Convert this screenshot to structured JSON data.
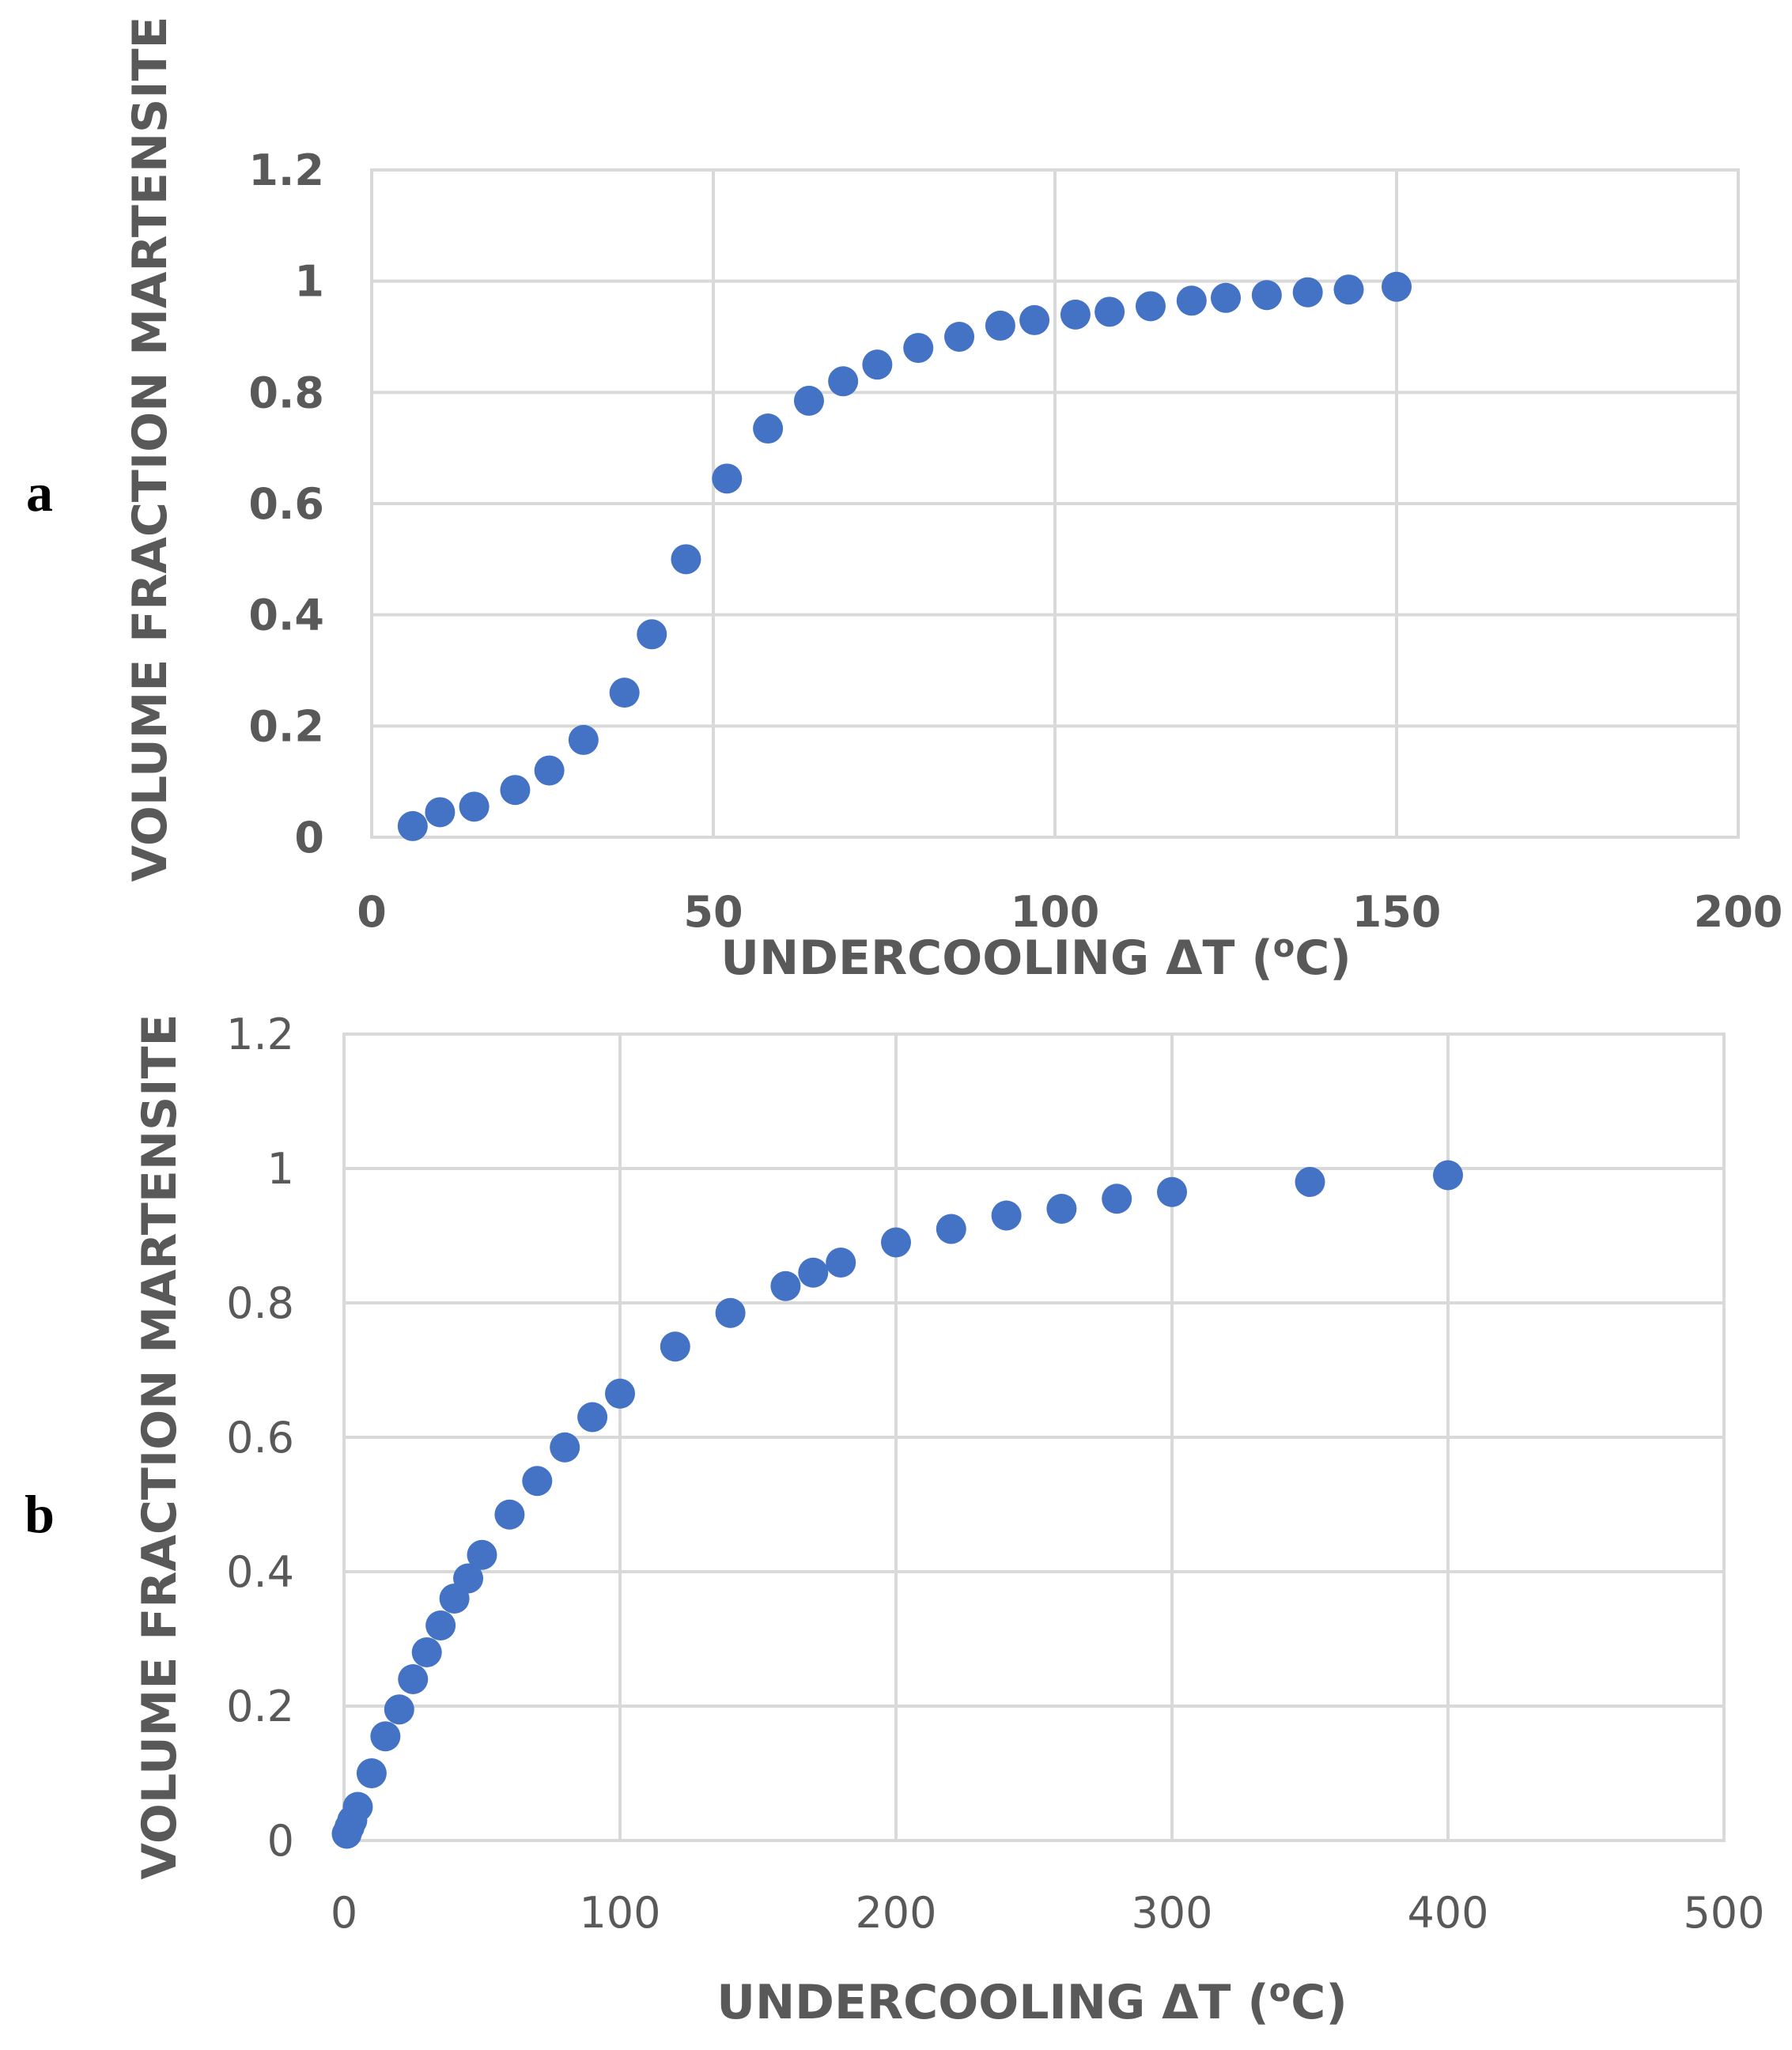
{
  "chart_data": [
    {
      "type": "scatter",
      "panel_label": "a",
      "title": "",
      "xlabel": "UNDERCOOLING ΔT (",
      "xlabel_sup": "o",
      "xlabel_tail": "C)",
      "ylabel": "VOLUME FRACTION MARTENSITE",
      "xlim": [
        0,
        200
      ],
      "ylim": [
        0,
        1.2
      ],
      "x_ticks": [
        0,
        50,
        100,
        150,
        200
      ],
      "y_ticks": [
        0,
        0.2,
        0.4,
        0.6,
        0.8,
        1,
        1.2
      ],
      "x_tick_labels": [
        "0",
        "50",
        "100",
        "150",
        "200"
      ],
      "y_tick_labels": [
        "0",
        "0.2",
        "0.4",
        "0.6",
        "0.8",
        "1",
        "1.2"
      ],
      "grid": true,
      "marker_color": "#4472c4",
      "series": [
        {
          "name": "",
          "x": [
            6,
            10,
            15,
            21,
            26,
            31,
            37,
            41,
            46,
            52,
            58,
            64,
            69,
            74,
            80,
            86,
            92,
            97,
            103,
            108,
            114,
            120,
            125,
            131,
            137,
            143,
            150
          ],
          "y": [
            0.02,
            0.045,
            0.055,
            0.085,
            0.12,
            0.175,
            0.26,
            0.365,
            0.5,
            0.645,
            0.735,
            0.785,
            0.82,
            0.85,
            0.88,
            0.9,
            0.92,
            0.93,
            0.94,
            0.945,
            0.955,
            0.965,
            0.97,
            0.975,
            0.98,
            0.985,
            0.99
          ]
        }
      ]
    },
    {
      "type": "scatter",
      "panel_label": "b",
      "title": "",
      "xlabel": "UNDERCOOLING ΔT (",
      "xlabel_sup": "o",
      "xlabel_tail": "C)",
      "ylabel": "VOLUME FRACTION MARTENSITE",
      "xlim": [
        0,
        500
      ],
      "ylim": [
        0,
        1.2
      ],
      "x_ticks": [
        0,
        100,
        200,
        300,
        400,
        500
      ],
      "y_ticks": [
        0,
        0.2,
        0.4,
        0.6,
        0.8,
        1,
        1.2
      ],
      "x_tick_labels": [
        "0",
        "100",
        "200",
        "300",
        "400",
        "500"
      ],
      "y_tick_labels": [
        "0",
        "0.2",
        "0.4",
        "0.6",
        "0.8",
        "1",
        "1.2"
      ],
      "grid": true,
      "marker_color": "#4472c4",
      "series": [
        {
          "name": "",
          "x": [
            1,
            2,
            3,
            5,
            10,
            15,
            20,
            25,
            30,
            35,
            40,
            45,
            50,
            60,
            70,
            80,
            90,
            100,
            120,
            140,
            160,
            170,
            180,
            200,
            220,
            240,
            260,
            280,
            300,
            350,
            400
          ],
          "y": [
            0.01,
            0.02,
            0.03,
            0.05,
            0.1,
            0.155,
            0.195,
            0.24,
            0.28,
            0.32,
            0.36,
            0.39,
            0.425,
            0.485,
            0.535,
            0.585,
            0.63,
            0.665,
            0.735,
            0.785,
            0.825,
            0.845,
            0.86,
            0.89,
            0.91,
            0.93,
            0.94,
            0.955,
            0.965,
            0.98,
            0.99
          ]
        }
      ]
    }
  ]
}
